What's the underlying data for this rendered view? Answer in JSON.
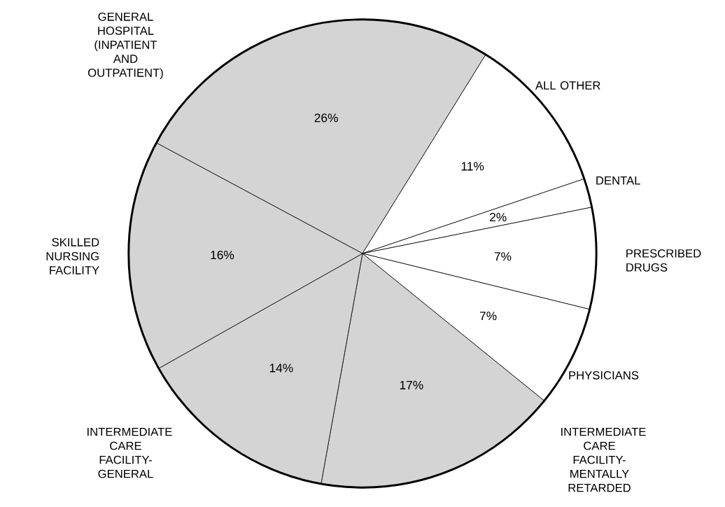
{
  "chart_data": {
    "type": "pie",
    "categories": [
      "GENERAL HOSPITAL (INPATIENT AND OUTPATIENT)",
      "ALL OTHER",
      "DENTAL",
      "PRESCRIBED DRUGS",
      "PHYSICIANS",
      "INTERMEDIATE CARE FACILITY-MENTALLY RETARDED",
      "INTERMEDIATE CARE FACILITY-GENERAL",
      "SKILLED NURSING FACILITY"
    ],
    "values": [
      26,
      11,
      2,
      7,
      7,
      17,
      14,
      16
    ],
    "value_labels": [
      "26%",
      "11%",
      "2%",
      "7%",
      "7%",
      "17%",
      "14%",
      "16%"
    ],
    "colors": [
      "#d4d4d4",
      "#ffffff",
      "#ffffff",
      "#ffffff",
      "#ffffff",
      "#d4d4d4",
      "#d4d4d4",
      "#d4d4d4"
    ]
  }
}
